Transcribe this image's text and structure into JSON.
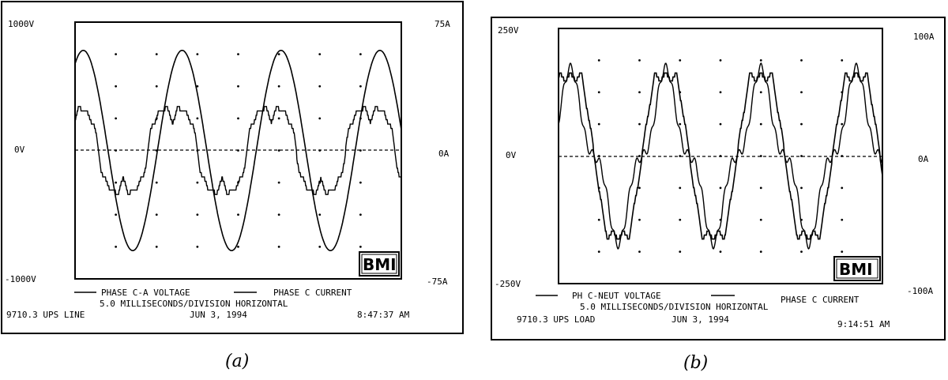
{
  "chart_data": [
    {
      "id": "a",
      "type": "line",
      "caption": "(a)",
      "left_axis": {
        "top": "1000V",
        "mid": "0V",
        "bottom": "-1000V",
        "range": [
          -1000,
          1000
        ]
      },
      "right_axis": {
        "top": "75A",
        "mid": "0A",
        "bottom": "-75A",
        "range": [
          -75,
          75
        ]
      },
      "logo": "BMI",
      "legend": [
        {
          "name": "PHASE C-A VOLTAGE"
        },
        {
          "name": "PHASE C CURRENT"
        }
      ],
      "footer": {
        "timebase": "5.0 MILLISECONDS/DIVISION HORIZONTAL",
        "label": "9710.3 UPS LINE",
        "date": "JUN 3, 1994",
        "time": "8:47:37 AM"
      },
      "x_divisions": 8,
      "y_divisions": 8,
      "grid": "dotted",
      "series": [
        {
          "name": "PHASE C-A VOLTAGE",
          "axis": "left",
          "amplitude": 780,
          "cycles": 3.3,
          "phase_deg": 60,
          "shape": "sine"
        },
        {
          "name": "PHASE C CURRENT",
          "axis": "right",
          "amplitude": 36,
          "cycles": 3.3,
          "phase_deg": 95,
          "shape": "stepped-rectified"
        }
      ]
    },
    {
      "id": "b",
      "type": "line",
      "caption": "(b)",
      "left_axis": {
        "top": "250V",
        "mid": "0V",
        "bottom": "-250V",
        "range": [
          -250,
          250
        ]
      },
      "right_axis": {
        "top": "100A",
        "mid": "0A",
        "bottom": "-100A",
        "range": [
          -100,
          100
        ]
      },
      "logo": "BMI",
      "legend": [
        {
          "name": "PH C-NEUT VOLTAGE"
        },
        {
          "name": "PHASE C CURRENT"
        }
      ],
      "footer": {
        "timebase": "5.0 MILLISECONDS/DIVISION HORIZONTAL",
        "label": "9710.3 UPS LOAD",
        "date": "JUN 3, 1994",
        "time": "9:14:51 AM"
      },
      "x_divisions": 8,
      "y_divisions": 8,
      "grid": "dotted",
      "series": [
        {
          "name": "PH C-NEUT VOLTAGE",
          "axis": "left",
          "amplitude": 155,
          "cycles": 3.4,
          "phase_deg": 45,
          "shape": "flat-topped"
        },
        {
          "name": "PHASE C CURRENT",
          "axis": "right",
          "amplitude": 75,
          "cycles": 3.4,
          "phase_deg": 45,
          "shape": "peaky"
        }
      ]
    }
  ]
}
